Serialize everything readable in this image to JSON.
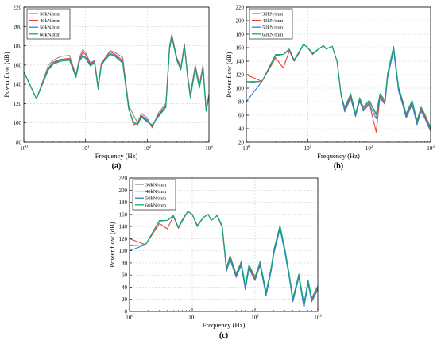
{
  "colors": {
    "30kN/mm": "#8c8c8c",
    "40kN/mm": "#e8413a",
    "50kN/mm": "#2f7fd8",
    "60kN/mm": "#13a86e",
    "grid": "#cfcfcf"
  },
  "chart_data": [
    {
      "type": "line",
      "panel_label": "(a)",
      "xlabel": "Frequency (Hz)",
      "ylabel": "Power flow (dB)",
      "xscale": "log",
      "xlim": [
        1,
        1000
      ],
      "ylim": [
        80,
        220
      ],
      "yticks": [
        80,
        100,
        120,
        140,
        160,
        180,
        200,
        220
      ],
      "xticks": [
        "10^0",
        "10^1",
        "10^2",
        "10^3"
      ],
      "grid": true,
      "legend_position": "top-left",
      "series": [
        {
          "name": "30kN/mm",
          "x": [
            1,
            1.6,
            2.5,
            3,
            4,
            5.5,
            7,
            8,
            9,
            10,
            12,
            14,
            16,
            18,
            20,
            25,
            30,
            40,
            50,
            60,
            70,
            80,
            100,
            120,
            150,
            200,
            230,
            250,
            300,
            350,
            400,
            450,
            500,
            600,
            700,
            800,
            900,
            1000
          ],
          "values": [
            153,
            125,
            160,
            165,
            169,
            170,
            150,
            168,
            176,
            173,
            162,
            165,
            138,
            162,
            165,
            175,
            173,
            168,
            118,
            108,
            100,
            110,
            105,
            95,
            110,
            120,
            180,
            192,
            168,
            158,
            182,
            150,
            130,
            160,
            140,
            160,
            115,
            130
          ]
        },
        {
          "name": "40kN/mm",
          "x": [
            1,
            1.6,
            2.5,
            3,
            4,
            5.5,
            7,
            8,
            9,
            10,
            12,
            14,
            16,
            18,
            20,
            25,
            30,
            40,
            50,
            60,
            70,
            80,
            100,
            120,
            150,
            200,
            230,
            250,
            300,
            350,
            400,
            450,
            500,
            600,
            700,
            800,
            900,
            1000
          ],
          "values": [
            153,
            125,
            157,
            163,
            166,
            167,
            149,
            166,
            173,
            171,
            161,
            164,
            137,
            161,
            166,
            174,
            171,
            165,
            116,
            98,
            100,
            108,
            103,
            96,
            108,
            118,
            178,
            191,
            167,
            157,
            181,
            149,
            128,
            158,
            138,
            158,
            114,
            128
          ]
        },
        {
          "name": "50kN/mm",
          "x": [
            1,
            1.6,
            2.5,
            3,
            4,
            5.5,
            7,
            8,
            9,
            10,
            12,
            14,
            16,
            18,
            20,
            25,
            30,
            40,
            50,
            60,
            70,
            80,
            100,
            120,
            150,
            200,
            230,
            250,
            300,
            350,
            400,
            450,
            500,
            600,
            700,
            800,
            900,
            1000
          ],
          "values": [
            153,
            125,
            156,
            162,
            165,
            166,
            148,
            165,
            170,
            168,
            160,
            163,
            136,
            160,
            165,
            172,
            170,
            163,
            115,
            100,
            99,
            107,
            102,
            97,
            107,
            117,
            177,
            190,
            166,
            156,
            180,
            148,
            127,
            157,
            137,
            157,
            113,
            127
          ]
        },
        {
          "name": "60kN/mm",
          "x": [
            1,
            1.6,
            2.5,
            3,
            4,
            5.5,
            7,
            8,
            9,
            10,
            12,
            14,
            16,
            18,
            20,
            25,
            30,
            40,
            50,
            60,
            70,
            80,
            100,
            120,
            150,
            200,
            230,
            250,
            300,
            350,
            400,
            450,
            500,
            600,
            700,
            800,
            900,
            1000
          ],
          "values": [
            153,
            125,
            155,
            161,
            164,
            165,
            147,
            164,
            169,
            167,
            159,
            162,
            135,
            159,
            164,
            171,
            169,
            162,
            114,
            101,
            98,
            106,
            101,
            98,
            106,
            116,
            176,
            189,
            165,
            155,
            179,
            147,
            126,
            156,
            136,
            156,
            112,
            126
          ]
        }
      ]
    },
    {
      "type": "line",
      "panel_label": "(b)",
      "xlabel": "Frequency (Hz)",
      "ylabel": "Power flow (dB)",
      "xscale": "log",
      "xlim": [
        1,
        1000
      ],
      "ylim": [
        20,
        220
      ],
      "yticks": [
        20,
        40,
        60,
        80,
        100,
        120,
        140,
        160,
        180,
        200,
        220
      ],
      "xticks": [
        "10^0",
        "10^1",
        "10^2",
        "10^3"
      ],
      "grid": true,
      "legend_position": "top-left",
      "series": [
        {
          "name": "30kN/mm",
          "x": [
            1,
            1.8,
            3,
            4,
            5,
            6,
            7,
            8.5,
            10,
            12,
            15,
            18,
            20,
            25,
            30,
            35,
            40,
            50,
            60,
            70,
            80,
            100,
            130,
            150,
            180,
            200,
            250,
            300,
            350,
            400,
            500,
            600,
            700,
            800,
            1000
          ],
          "values": [
            110,
            110,
            148,
            150,
            156,
            140,
            150,
            165,
            160,
            150,
            158,
            163,
            158,
            162,
            140,
            90,
            70,
            90,
            60,
            85,
            70,
            80,
            60,
            90,
            80,
            120,
            160,
            100,
            80,
            60,
            80,
            50,
            70,
            60,
            40
          ]
        },
        {
          "name": "40kN/mm",
          "x": [
            1,
            1.8,
            3,
            4,
            5,
            6,
            7,
            8.5,
            10,
            12,
            15,
            18,
            20,
            25,
            30,
            35,
            40,
            50,
            60,
            70,
            80,
            100,
            130,
            150,
            180,
            200,
            250,
            300,
            350,
            400,
            500,
            600,
            700,
            800,
            1000
          ],
          "values": [
            120,
            110,
            145,
            130,
            155,
            140,
            150,
            165,
            160,
            150,
            158,
            163,
            158,
            162,
            140,
            90,
            68,
            88,
            62,
            80,
            68,
            78,
            35,
            88,
            78,
            118,
            158,
            98,
            78,
            58,
            78,
            48,
            68,
            58,
            38
          ]
        },
        {
          "name": "50kN/mm",
          "x": [
            1,
            1.8,
            3,
            4,
            5,
            6,
            7,
            8.5,
            10,
            12,
            15,
            18,
            20,
            25,
            30,
            35,
            40,
            50,
            60,
            70,
            80,
            100,
            130,
            150,
            180,
            200,
            250,
            300,
            350,
            400,
            500,
            600,
            700,
            800,
            1000
          ],
          "values": [
            80,
            110,
            149,
            150,
            157,
            141,
            151,
            165,
            160,
            151,
            158,
            163,
            158,
            162,
            140,
            89,
            65,
            85,
            58,
            82,
            66,
            76,
            55,
            86,
            76,
            116,
            156,
            96,
            76,
            56,
            76,
            46,
            66,
            56,
            36
          ]
        },
        {
          "name": "60kN/mm",
          "x": [
            1,
            1.8,
            3,
            4,
            5,
            6,
            7,
            8.5,
            10,
            12,
            15,
            18,
            20,
            25,
            30,
            35,
            40,
            50,
            60,
            70,
            80,
            100,
            130,
            150,
            180,
            200,
            250,
            300,
            350,
            400,
            500,
            600,
            700,
            800,
            1000
          ],
          "values": [
            108,
            110,
            150,
            150,
            158,
            142,
            152,
            165,
            160,
            152,
            158,
            163,
            158,
            162,
            140,
            88,
            72,
            92,
            62,
            86,
            72,
            82,
            62,
            92,
            82,
            122,
            162,
            102,
            82,
            62,
            82,
            52,
            72,
            62,
            42
          ]
        }
      ]
    },
    {
      "type": "line",
      "panel_label": "(c)",
      "xlabel": "Frequency (Hz)",
      "ylabel": "Power flow (dB)",
      "xscale": "log",
      "xlim": [
        1,
        1000
      ],
      "ylim": [
        0,
        220
      ],
      "yticks": [
        0,
        20,
        40,
        60,
        80,
        100,
        120,
        140,
        160,
        180,
        200,
        220
      ],
      "xticks": [
        "10^0",
        "10^1",
        "10^2",
        "10^3"
      ],
      "grid": true,
      "legend_position": "top-left",
      "series": [
        {
          "name": "30kN/mm",
          "x": [
            1,
            1.8,
            3,
            4,
            5,
            6,
            7,
            8.5,
            10,
            12,
            15,
            18,
            20,
            25,
            30,
            35,
            40,
            50,
            60,
            70,
            80,
            100,
            120,
            150,
            180,
            200,
            250,
            300,
            350,
            400,
            500,
            600,
            700,
            800,
            1000
          ],
          "values": [
            108,
            110,
            150,
            150,
            158,
            138,
            150,
            165,
            160,
            140,
            155,
            160,
            150,
            158,
            140,
            70,
            90,
            60,
            80,
            40,
            75,
            55,
            80,
            30,
            70,
            100,
            140,
            100,
            60,
            20,
            60,
            10,
            50,
            20,
            40
          ]
        },
        {
          "name": "40kN/mm",
          "x": [
            1,
            1.8,
            3,
            4,
            5,
            6,
            7,
            8.5,
            10,
            12,
            15,
            18,
            20,
            25,
            30,
            35,
            40,
            50,
            60,
            70,
            80,
            100,
            120,
            150,
            180,
            200,
            250,
            300,
            350,
            400,
            500,
            600,
            700,
            800,
            1000
          ],
          "values": [
            120,
            110,
            145,
            136,
            157,
            137,
            150,
            165,
            160,
            140,
            155,
            160,
            150,
            158,
            138,
            68,
            88,
            58,
            78,
            38,
            73,
            53,
            78,
            28,
            68,
            98,
            138,
            98,
            58,
            18,
            58,
            8,
            48,
            18,
            38
          ]
        },
        {
          "name": "50kN/mm",
          "x": [
            1,
            1.8,
            3,
            4,
            5,
            6,
            7,
            8.5,
            10,
            12,
            15,
            18,
            20,
            25,
            30,
            35,
            40,
            50,
            60,
            70,
            80,
            100,
            120,
            150,
            180,
            200,
            250,
            300,
            350,
            400,
            500,
            600,
            700,
            800,
            1000
          ],
          "values": [
            100,
            110,
            149,
            150,
            157,
            138,
            151,
            165,
            160,
            141,
            155,
            160,
            150,
            158,
            139,
            66,
            86,
            56,
            76,
            36,
            71,
            51,
            76,
            26,
            66,
            96,
            136,
            96,
            56,
            16,
            56,
            6,
            46,
            16,
            36
          ]
        },
        {
          "name": "60kN/mm",
          "x": [
            1,
            1.8,
            3,
            4,
            5,
            6,
            7,
            8.5,
            10,
            12,
            15,
            18,
            20,
            25,
            30,
            35,
            40,
            50,
            60,
            70,
            80,
            100,
            120,
            150,
            180,
            200,
            250,
            300,
            350,
            400,
            500,
            600,
            700,
            800,
            1000
          ],
          "values": [
            108,
            110,
            150,
            150,
            158,
            139,
            152,
            165,
            160,
            142,
            155,
            160,
            150,
            158,
            141,
            72,
            92,
            62,
            82,
            42,
            77,
            57,
            82,
            32,
            72,
            102,
            142,
            102,
            62,
            22,
            62,
            12,
            52,
            22,
            42
          ]
        }
      ]
    }
  ]
}
